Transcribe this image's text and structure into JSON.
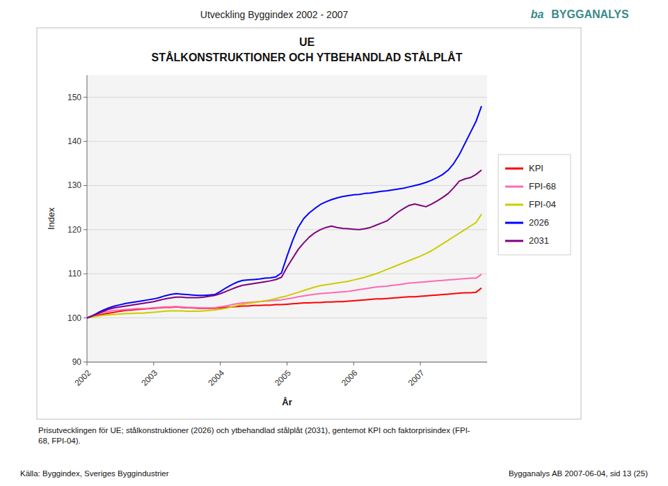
{
  "chart_data": {
    "type": "line",
    "title": "UE",
    "subtitle": "STÅLKONSTRUKTIONER OCH YTBEHANDLAD STÅLPLÅT",
    "annotations": [
      "Utveckling Byggindex 2002 - 2007",
      "ba",
      "BYGGANALYS",
      "Prisutvecklingen för UE; stålkonstruktioner (2026) och ytbehandlad stålplåt (2031), gentemot KPI och faktorprisindex (FPI-\n68, FPI-04).",
      "Källa: Byggindex, Sveriges Byggindustrier",
      "Bygganalys AB 2007-06-04, sid 13 (25)"
    ],
    "xlabel": "År",
    "ylabel": "Index",
    "x": [
      2002,
      2002.0833333333333,
      2002.1666666666667,
      2002.25,
      2002.3333333333333,
      2002.4166666666667,
      2002.5,
      2002.5833333333333,
      2002.6666666666667,
      2002.75,
      2002.8333333333333,
      2002.9166666666667,
      2003,
      2003.0833333333333,
      2003.1666666666667,
      2003.25,
      2003.3333333333333,
      2003.4166666666667,
      2003.5,
      2003.5833333333333,
      2003.6666666666667,
      2003.75,
      2003.8333333333333,
      2003.9166666666667,
      2004,
      2004.0833333333333,
      2004.1666666666667,
      2004.25,
      2004.3333333333333,
      2004.4166666666667,
      2004.5,
      2004.5833333333333,
      2004.6666666666667,
      2004.75,
      2004.8333333333333,
      2004.9166666666667,
      2005,
      2005.0833333333333,
      2005.1666666666667,
      2005.25,
      2005.3333333333333,
      2005.4166666666667,
      2005.5,
      2005.5833333333333,
      2005.6666666666667,
      2005.75,
      2005.8333333333333,
      2005.9166666666667,
      2006,
      2006.0833333333333,
      2006.1666666666667,
      2006.25,
      2006.3333333333333,
      2006.4166666666667,
      2006.5,
      2006.5833333333333,
      2006.6666666666667,
      2006.75,
      2006.8333333333333,
      2006.9166666666667,
      2007,
      2007.0833333333333,
      2007.1666666666667,
      2007.25,
      2007.3333333333333,
      2007.4166666666667,
      2007.5,
      2007.5833333333333,
      2007.6666666666667,
      2007.75,
      2007.8333333333333,
      2007.9166666666667
    ],
    "xlim": [
      2002,
      2008
    ],
    "xticks": [
      2002,
      2003,
      2004,
      2005,
      2006,
      2007
    ],
    "ylim": [
      90,
      155
    ],
    "yticks": [
      90,
      100,
      110,
      120,
      130,
      140,
      150
    ],
    "grid": true,
    "legend": "right",
    "series": [
      {
        "name": "KPI",
        "color": "#ff0000",
        "values": [
          100.0,
          100.3,
          100.6,
          100.9,
          101.1,
          101.3,
          101.5,
          101.7,
          101.8,
          101.9,
          102.0,
          102.1,
          102.2,
          102.3,
          102.4,
          102.4,
          102.5,
          102.4,
          102.3,
          102.3,
          102.2,
          102.2,
          102.2,
          102.2,
          102.3,
          102.4,
          102.5,
          102.6,
          102.7,
          102.7,
          102.8,
          102.8,
          102.9,
          102.9,
          103.0,
          103.0,
          103.1,
          103.2,
          103.3,
          103.4,
          103.4,
          103.5,
          103.5,
          103.6,
          103.6,
          103.7,
          103.7,
          103.8,
          103.9,
          104.0,
          104.1,
          104.2,
          104.3,
          104.3,
          104.4,
          104.5,
          104.6,
          104.7,
          104.8,
          104.8,
          104.9,
          105.0,
          105.1,
          105.2,
          105.3,
          105.4,
          105.5,
          105.6,
          105.7,
          105.7,
          105.8,
          106.8
        ]
      },
      {
        "name": "FPI-68",
        "color": "#ff69b4",
        "values": [
          100.0,
          100.5,
          101.0,
          101.3,
          101.5,
          101.7,
          101.8,
          101.9,
          102.0,
          102.1,
          102.1,
          102.2,
          102.3,
          102.4,
          102.5,
          102.5,
          102.6,
          102.5,
          102.4,
          102.4,
          102.3,
          102.3,
          102.3,
          102.3,
          102.5,
          102.7,
          103.0,
          103.2,
          103.4,
          103.5,
          103.6,
          103.7,
          103.8,
          103.9,
          104.0,
          104.1,
          104.3,
          104.5,
          104.8,
          105.0,
          105.2,
          105.4,
          105.5,
          105.6,
          105.7,
          105.8,
          105.9,
          106.0,
          106.2,
          106.4,
          106.6,
          106.8,
          107.0,
          107.1,
          107.2,
          107.4,
          107.5,
          107.7,
          107.9,
          108.0,
          108.1,
          108.2,
          108.3,
          108.4,
          108.5,
          108.6,
          108.7,
          108.8,
          108.9,
          109.0,
          109.0,
          109.9
        ]
      },
      {
        "name": "FPI-04",
        "color": "#cccc00",
        "values": [
          100.0,
          100.2,
          100.4,
          100.6,
          100.7,
          100.8,
          100.9,
          101.0,
          101.0,
          101.1,
          101.1,
          101.2,
          101.3,
          101.4,
          101.5,
          101.6,
          101.6,
          101.6,
          101.5,
          101.5,
          101.5,
          101.6,
          101.7,
          101.8,
          102.0,
          102.2,
          102.5,
          102.8,
          103.1,
          103.3,
          103.5,
          103.7,
          103.9,
          104.1,
          104.4,
          104.7,
          105.0,
          105.4,
          105.8,
          106.2,
          106.6,
          107.0,
          107.3,
          107.5,
          107.7,
          107.9,
          108.1,
          108.3,
          108.6,
          108.9,
          109.2,
          109.6,
          110.0,
          110.5,
          111.0,
          111.5,
          112.0,
          112.5,
          113.0,
          113.5,
          114.0,
          114.6,
          115.2,
          116.0,
          116.8,
          117.6,
          118.4,
          119.2,
          120.0,
          120.8,
          121.6,
          123.5
        ]
      },
      {
        "name": "2026",
        "color": "#0000ff",
        "values": [
          100.0,
          100.5,
          101.2,
          101.8,
          102.3,
          102.7,
          103.0,
          103.3,
          103.5,
          103.7,
          103.9,
          104.1,
          104.3,
          104.6,
          105.0,
          105.3,
          105.5,
          105.4,
          105.3,
          105.2,
          105.1,
          105.1,
          105.2,
          105.3,
          106.0,
          106.8,
          107.5,
          108.1,
          108.5,
          108.6,
          108.7,
          108.8,
          109.0,
          109.1,
          109.3,
          110.2,
          114.0,
          117.5,
          120.5,
          122.5,
          123.8,
          124.8,
          125.7,
          126.3,
          126.8,
          127.2,
          127.5,
          127.7,
          127.9,
          128.0,
          128.2,
          128.3,
          128.5,
          128.7,
          128.8,
          129.0,
          129.2,
          129.4,
          129.7,
          130.0,
          130.3,
          130.7,
          131.2,
          131.8,
          132.5,
          133.5,
          135.0,
          137.0,
          139.5,
          142.0,
          144.5,
          148.0
        ]
      },
      {
        "name": "2031",
        "color": "#800080",
        "values": [
          100.0,
          100.5,
          101.0,
          101.5,
          102.0,
          102.3,
          102.5,
          102.7,
          102.9,
          103.1,
          103.3,
          103.5,
          103.7,
          104.0,
          104.3,
          104.5,
          104.7,
          104.7,
          104.6,
          104.6,
          104.6,
          104.7,
          104.9,
          105.1,
          105.5,
          106.0,
          106.5,
          107.0,
          107.4,
          107.6,
          107.8,
          108.0,
          108.2,
          108.4,
          108.7,
          109.2,
          111.5,
          113.5,
          115.5,
          117.0,
          118.3,
          119.3,
          120.0,
          120.5,
          120.8,
          120.5,
          120.3,
          120.2,
          120.1,
          120.0,
          120.2,
          120.5,
          121.0,
          121.5,
          122.0,
          123.0,
          124.0,
          124.8,
          125.5,
          125.8,
          125.5,
          125.2,
          125.8,
          126.5,
          127.3,
          128.2,
          129.5,
          131.0,
          131.5,
          131.8,
          132.5,
          133.5
        ]
      }
    ]
  }
}
